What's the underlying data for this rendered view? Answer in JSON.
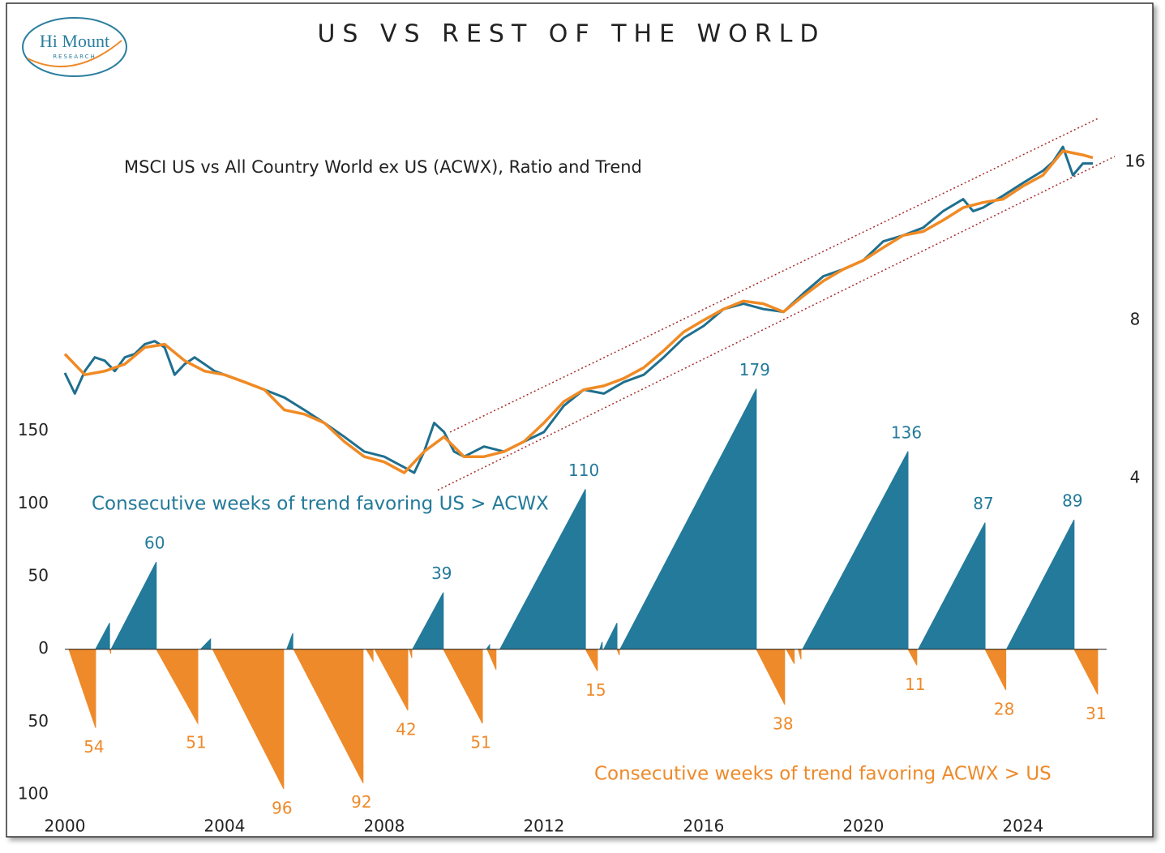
{
  "chart_data": [
    {
      "type": "line",
      "title": "US VS REST OF THE WORLD",
      "subtitle": "MSCI US vs All Country World ex US (ACWX), Ratio and Trend",
      "logo": {
        "name": "Hi Mount",
        "sub": "RESEARCH"
      },
      "xlim": [
        2000,
        2026.4
      ],
      "y2lim": [
        3,
        20
      ],
      "y2ticks": [
        4,
        8,
        16
      ],
      "log": true,
      "series": [
        {
          "color": "#1f6f8f",
          "axis": "y2",
          "x": [
            2000.0,
            2000.25,
            2000.5,
            2000.75,
            2001.0,
            2001.25,
            2001.5,
            2001.75,
            2002.0,
            2002.25,
            2002.5,
            2002.75,
            2003.0,
            2003.25,
            2003.5,
            2003.75,
            2004.0,
            2004.5,
            2005.0,
            2005.5,
            2006.0,
            2006.5,
            2007.0,
            2007.5,
            2008.0,
            2008.5,
            2008.75,
            2009.0,
            2009.25,
            2009.5,
            2009.75,
            2010.0,
            2010.5,
            2011.0,
            2011.5,
            2012.0,
            2012.5,
            2013.0,
            2013.5,
            2014.0,
            2014.5,
            2015.0,
            2015.5,
            2016.0,
            2016.5,
            2017.0,
            2017.5,
            2018.0,
            2018.5,
            2019.0,
            2019.5,
            2020.0,
            2020.5,
            2021.0,
            2021.5,
            2022.0,
            2022.5,
            2022.75,
            2023.0,
            2023.5,
            2024.0,
            2024.5,
            2024.75,
            2025.0,
            2025.25,
            2025.5,
            2025.75
          ],
          "values": [
            6.35,
            5.8,
            6.4,
            6.8,
            6.7,
            6.4,
            6.8,
            6.9,
            7.2,
            7.3,
            7.1,
            6.3,
            6.6,
            6.8,
            6.6,
            6.4,
            6.3,
            6.1,
            5.9,
            5.7,
            5.4,
            5.1,
            4.8,
            4.5,
            4.4,
            4.2,
            4.1,
            4.5,
            5.1,
            4.9,
            4.5,
            4.4,
            4.6,
            4.5,
            4.7,
            4.9,
            5.5,
            5.9,
            5.8,
            6.1,
            6.3,
            6.8,
            7.4,
            7.8,
            8.4,
            8.6,
            8.4,
            8.3,
            9.0,
            9.7,
            10.0,
            10.4,
            11.3,
            11.6,
            12.0,
            12.9,
            13.6,
            12.9,
            13.1,
            13.8,
            14.6,
            15.4,
            16.0,
            17.1,
            15.1,
            15.9,
            15.9
          ]
        },
        {
          "color": "#f08a24",
          "axis": "y2",
          "x": [
            2000.0,
            2000.5,
            2001.0,
            2001.5,
            2002.0,
            2002.5,
            2003.0,
            2003.5,
            2004.0,
            2004.5,
            2005.0,
            2005.5,
            2006.0,
            2006.5,
            2007.0,
            2007.5,
            2008.0,
            2008.5,
            2009.0,
            2009.5,
            2010.0,
            2010.5,
            2011.0,
            2011.5,
            2012.0,
            2012.5,
            2013.0,
            2013.5,
            2014.0,
            2014.5,
            2015.0,
            2015.5,
            2016.0,
            2016.5,
            2017.0,
            2017.5,
            2018.0,
            2018.5,
            2019.0,
            2019.5,
            2020.0,
            2020.5,
            2021.0,
            2021.5,
            2022.0,
            2022.5,
            2023.0,
            2023.5,
            2024.0,
            2024.5,
            2025.0,
            2025.5,
            2025.75
          ],
          "values": [
            6.9,
            6.3,
            6.4,
            6.6,
            7.1,
            7.2,
            6.7,
            6.4,
            6.3,
            6.1,
            5.9,
            5.4,
            5.3,
            5.1,
            4.7,
            4.4,
            4.3,
            4.1,
            4.5,
            4.8,
            4.4,
            4.4,
            4.5,
            4.7,
            5.1,
            5.6,
            5.9,
            6.0,
            6.2,
            6.5,
            7.0,
            7.6,
            8.0,
            8.4,
            8.7,
            8.6,
            8.3,
            8.9,
            9.5,
            10.0,
            10.4,
            11.0,
            11.6,
            11.8,
            12.4,
            13.1,
            13.4,
            13.6,
            14.4,
            15.1,
            16.8,
            16.5,
            16.3
          ]
        }
      ],
      "channel": {
        "color": "#a52a2a",
        "lines": [
          {
            "x": [
              2009.65,
              2025.9
            ],
            "values": [
              4.9,
              19.4
            ]
          },
          {
            "x": [
              2009.34,
              2026.3
            ],
            "values": [
              3.8,
              16.4
            ]
          }
        ]
      }
    },
    {
      "type": "area",
      "xlim": [
        2000,
        2026.4
      ],
      "xticks": [
        2000,
        2004,
        2008,
        2012,
        2016,
        2020,
        2024
      ],
      "ylim": [
        -100,
        200
      ],
      "yticks": [
        150,
        100,
        50,
        0,
        {
          "value": -50,
          "label": "50"
        },
        {
          "value": -100,
          "label": "100"
        }
      ],
      "series": [
        {
          "name": "Consecutive weeks of trend favoring US > ACWX",
          "color": "#237a9a",
          "start": [
            2000.77,
            2001.16,
            2003.4,
            2005.56,
            2008.71,
            2010.56,
            2010.9,
            2013.4,
            2013.5,
            2013.91,
            2018.48,
            2021.38,
            2023.59
          ],
          "end": [
            2001.12,
            2002.29,
            2003.65,
            2005.71,
            2009.48,
            2010.64,
            2013.04,
            2013.46,
            2013.83,
            2017.32,
            2021.12,
            2023.05,
            2025.28
          ],
          "values": [
            18,
            60,
            7,
            11,
            39,
            3,
            110,
            5,
            18,
            179,
            136,
            87,
            89
          ],
          "value_labels": [
            null,
            "60",
            null,
            null,
            "39",
            null,
            "110",
            null,
            null,
            "179",
            "136",
            "87",
            "89"
          ]
        },
        {
          "name": "Consecutive weeks of trend favoring ACWX > US",
          "color": "#ee8a2a",
          "start": [
            2000.1,
            2001.12,
            2002.29,
            2003.7,
            2005.73,
            2007.55,
            2007.76,
            2008.63,
            2009.48,
            2010.58,
            2013.04,
            2013.83,
            2017.32,
            2018.07,
            2018.37,
            2021.12,
            2023.05,
            2025.28
          ],
          "end": [
            2000.77,
            2001.15,
            2003.33,
            2005.48,
            2007.47,
            2007.72,
            2008.59,
            2008.69,
            2010.46,
            2010.8,
            2013.34,
            2013.89,
            2018.03,
            2018.27,
            2018.44,
            2021.34,
            2023.57,
            2025.87
          ],
          "values": [
            -54,
            -3,
            -51,
            -96,
            -92,
            -8,
            -42,
            -6,
            -51,
            -14,
            -15,
            -4,
            -38,
            -10,
            -7,
            -11,
            -28,
            -31
          ],
          "value_labels": [
            "54",
            null,
            "51",
            "96",
            "92",
            null,
            "42",
            null,
            "51",
            null,
            "15",
            null,
            "38",
            null,
            null,
            "11",
            "28",
            "31"
          ]
        }
      ]
    }
  ]
}
